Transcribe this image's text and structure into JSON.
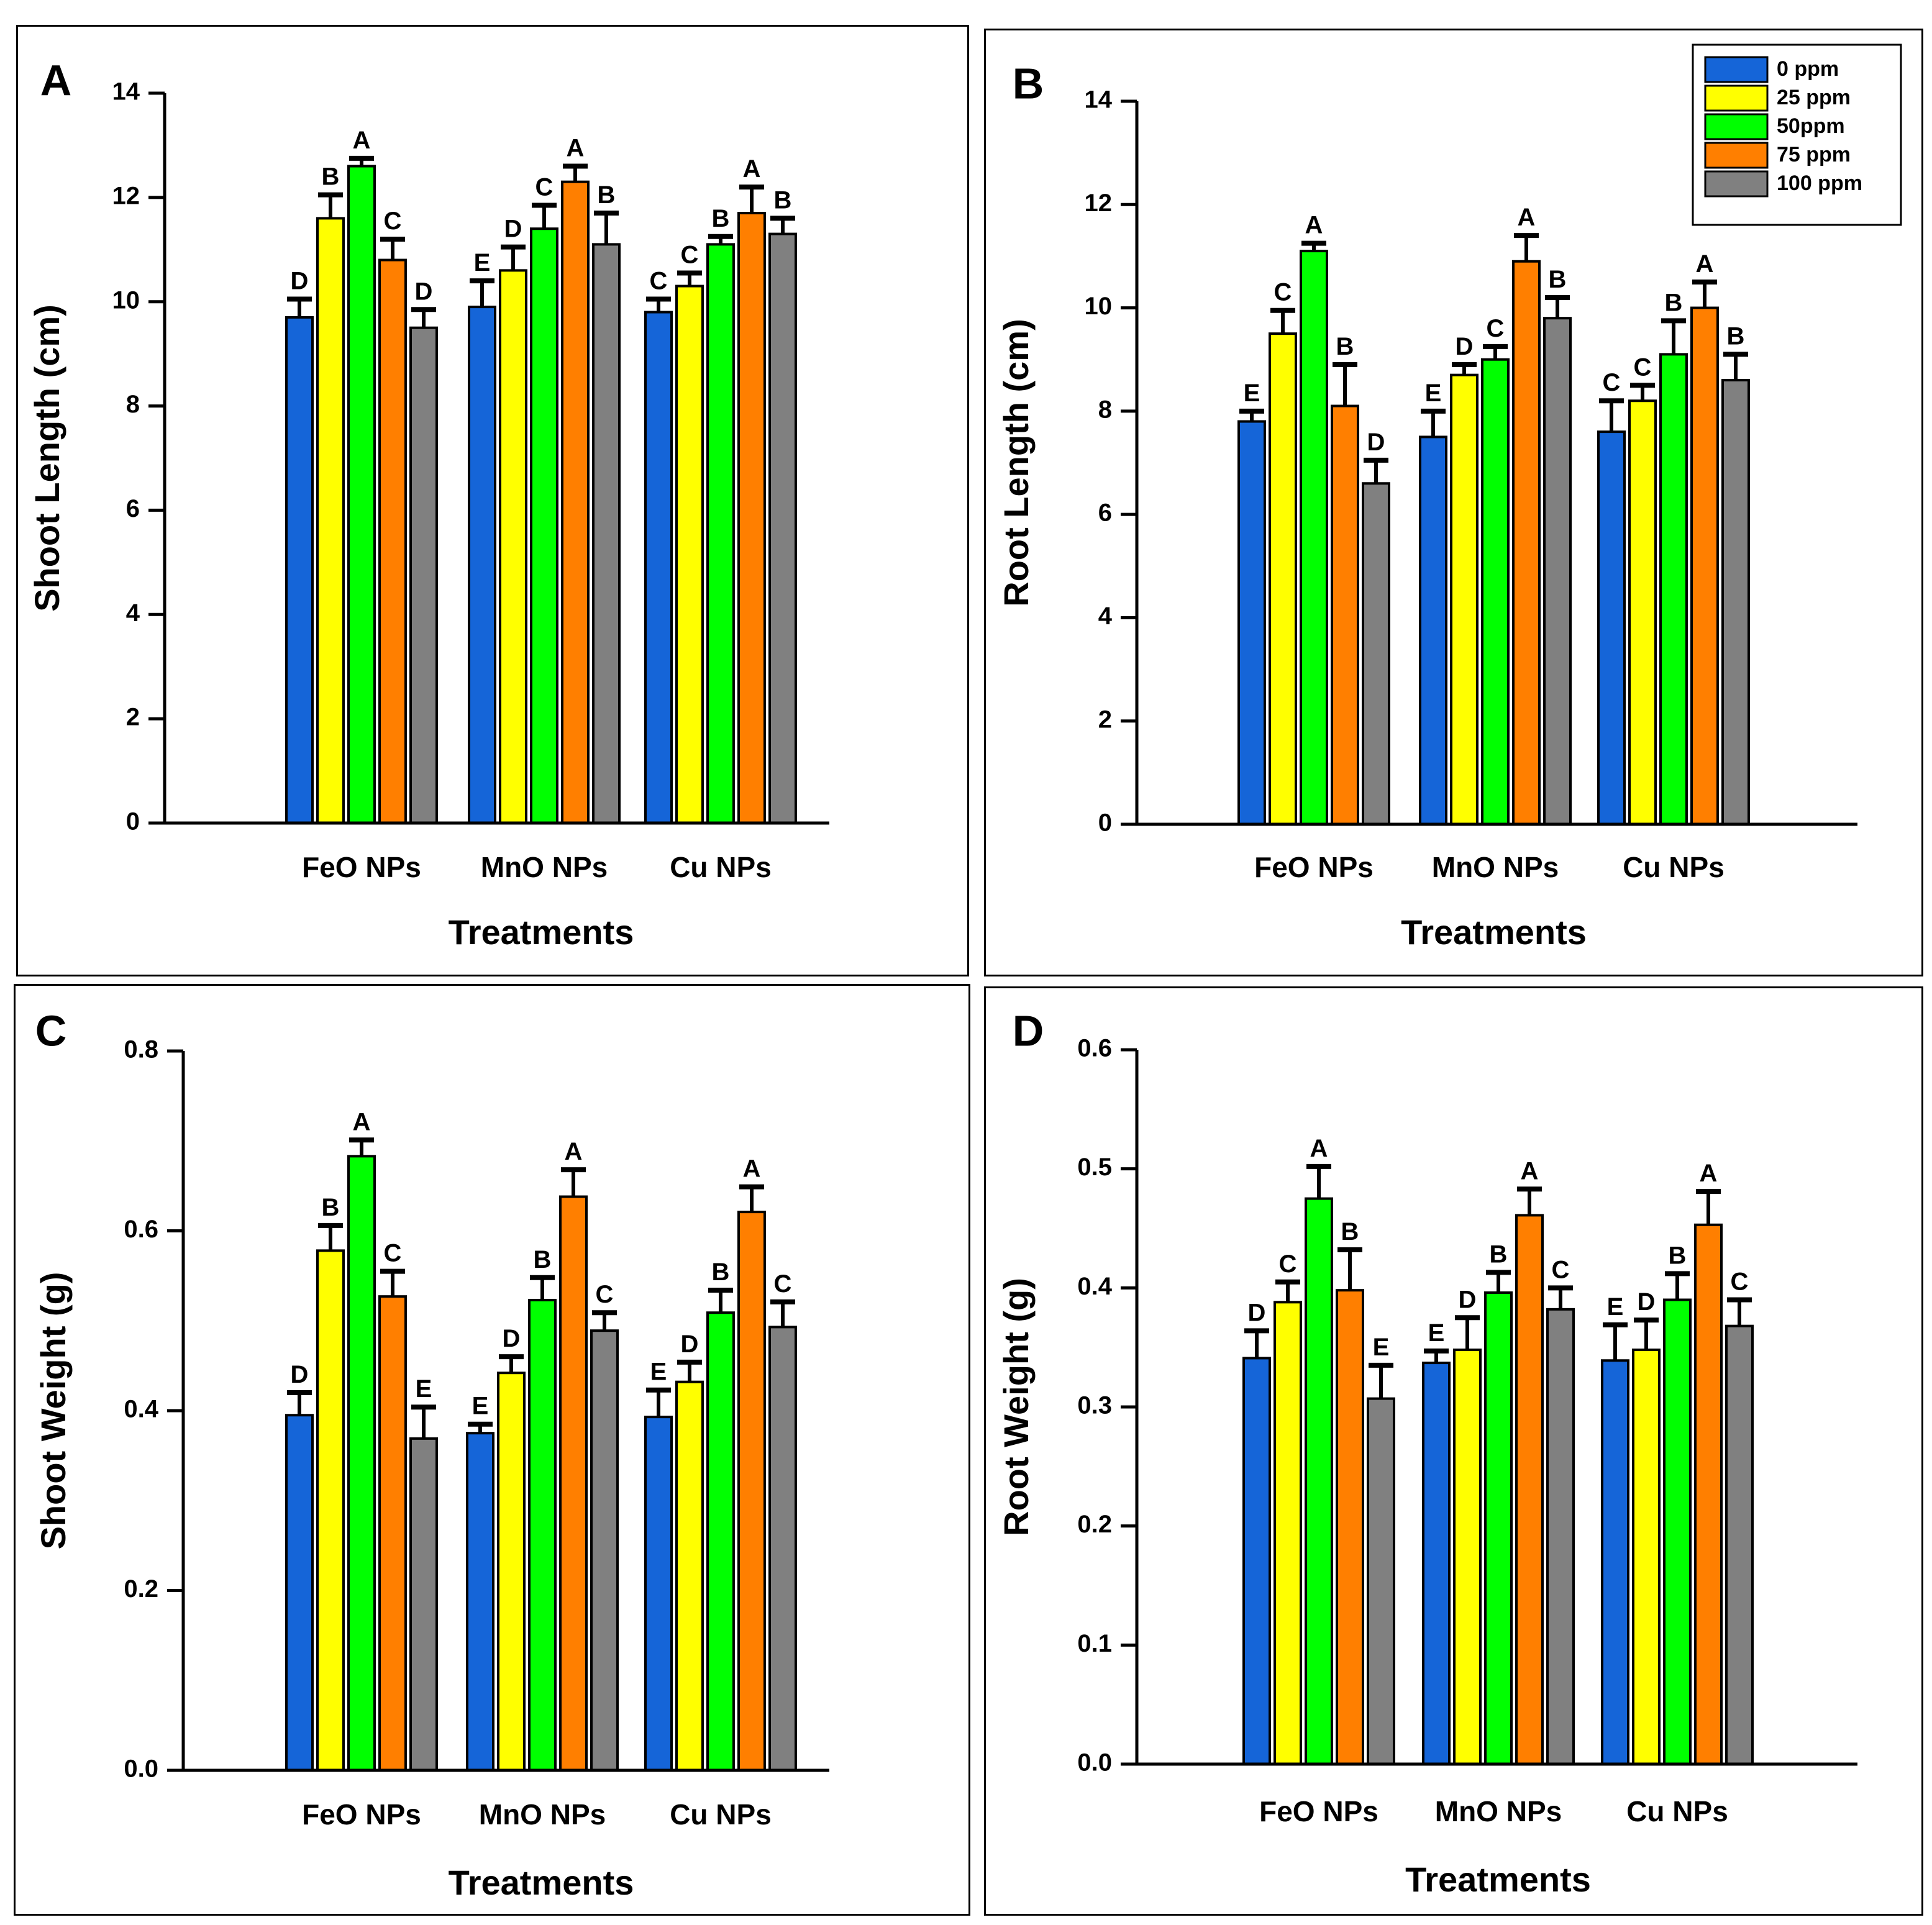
{
  "legend": {
    "entries": [
      {
        "label": "0 ppm",
        "color": "#1565d8"
      },
      {
        "label": "25 ppm",
        "color": "#ffff00"
      },
      {
        "label": "50ppm",
        "color": "#00ff00"
      },
      {
        "label": "75 ppm",
        "color": "#ff7f00"
      },
      {
        "label": "100 ppm",
        "color": "#808080"
      }
    ]
  },
  "chart_data": [
    {
      "panel": "A",
      "type": "bar",
      "title": "",
      "xlabel": "Treatments",
      "ylabel": "Shoot Length (cm)",
      "ylim": [
        0,
        14
      ],
      "yticks": [
        "0",
        "2",
        "4",
        "6",
        "8",
        "10",
        "12",
        "14"
      ],
      "categories": [
        "FeO NPs",
        "MnO NPs",
        "Cu NPs"
      ],
      "series": [
        {
          "name": "0 ppm",
          "values": [
            9.7,
            9.9,
            9.8
          ],
          "errors": [
            0.35,
            0.5,
            0.25
          ],
          "letters": [
            "D",
            "E",
            "C"
          ]
        },
        {
          "name": "25 ppm",
          "values": [
            11.6,
            10.6,
            10.3
          ],
          "errors": [
            0.45,
            0.45,
            0.25
          ],
          "letters": [
            "B",
            "D",
            "C"
          ]
        },
        {
          "name": "50ppm",
          "values": [
            12.6,
            11.4,
            11.1
          ],
          "errors": [
            0.15,
            0.45,
            0.15
          ],
          "letters": [
            "A",
            "C",
            "B"
          ]
        },
        {
          "name": "75 ppm",
          "values": [
            10.8,
            12.3,
            11.7
          ],
          "errors": [
            0.4,
            0.3,
            0.5
          ],
          "letters": [
            "C",
            "A",
            "A"
          ]
        },
        {
          "name": "100 ppm",
          "values": [
            9.5,
            11.1,
            11.3
          ],
          "errors": [
            0.35,
            0.6,
            0.3
          ],
          "letters": [
            "D",
            "B",
            "B"
          ]
        }
      ]
    },
    {
      "panel": "B",
      "type": "bar",
      "title": "",
      "xlabel": "Treatments",
      "ylabel": "Root Length (cm)",
      "ylim": [
        0,
        14
      ],
      "yticks": [
        "0",
        "2",
        "4",
        "6",
        "8",
        "10",
        "12",
        "14"
      ],
      "categories": [
        "FeO NPs",
        "MnO NPs",
        "Cu NPs"
      ],
      "series": [
        {
          "name": "0 ppm",
          "values": [
            7.8,
            7.5,
            7.6
          ],
          "errors": [
            0.2,
            0.5,
            0.6
          ],
          "letters": [
            "E",
            "E",
            "C"
          ]
        },
        {
          "name": "25 ppm",
          "values": [
            9.5,
            8.7,
            8.2
          ],
          "errors": [
            0.45,
            0.2,
            0.3
          ],
          "letters": [
            "C",
            "D",
            "C"
          ]
        },
        {
          "name": "50ppm",
          "values": [
            11.1,
            9.0,
            9.1
          ],
          "errors": [
            0.15,
            0.25,
            0.65
          ],
          "letters": [
            "A",
            "C",
            "B"
          ]
        },
        {
          "name": "75 ppm",
          "values": [
            8.1,
            10.9,
            10.0
          ],
          "errors": [
            0.8,
            0.5,
            0.5
          ],
          "letters": [
            "B",
            "A",
            "A"
          ]
        },
        {
          "name": "100 ppm",
          "values": [
            6.6,
            9.8,
            8.6
          ],
          "errors": [
            0.45,
            0.4,
            0.5
          ],
          "letters": [
            "D",
            "B",
            "B"
          ]
        }
      ]
    },
    {
      "panel": "C",
      "type": "bar",
      "title": "",
      "xlabel": "Treatments",
      "ylabel": "Shoot Weight (g)",
      "ylim": [
        0,
        0.8
      ],
      "yticks": [
        "0.0",
        "0.2",
        "0.4",
        "0.6",
        "0.8"
      ],
      "categories": [
        "FeO NPs",
        "MnO NPs",
        "Cu NPs"
      ],
      "series": [
        {
          "name": "0 ppm",
          "values": [
            0.395,
            0.375,
            0.393
          ],
          "errors": [
            0.025,
            0.01,
            0.03
          ],
          "letters": [
            "D",
            "E",
            "E"
          ]
        },
        {
          "name": "25 ppm",
          "values": [
            0.578,
            0.442,
            0.432
          ],
          "errors": [
            0.028,
            0.018,
            0.022
          ],
          "letters": [
            "B",
            "D",
            "D"
          ]
        },
        {
          "name": "50ppm",
          "values": [
            0.683,
            0.523,
            0.509
          ],
          "errors": [
            0.018,
            0.025,
            0.025
          ],
          "letters": [
            "A",
            "B",
            "B"
          ]
        },
        {
          "name": "75 ppm",
          "values": [
            0.527,
            0.638,
            0.621
          ],
          "errors": [
            0.028,
            0.03,
            0.028
          ],
          "letters": [
            "C",
            "A",
            "A"
          ]
        },
        {
          "name": "100 ppm",
          "values": [
            0.369,
            0.489,
            0.493
          ],
          "errors": [
            0.035,
            0.02,
            0.028
          ],
          "letters": [
            "E",
            "C",
            "C"
          ]
        }
      ]
    },
    {
      "panel": "D",
      "type": "bar",
      "title": "",
      "xlabel": "Treatments",
      "ylabel": "Root Weight (g)",
      "ylim": [
        0,
        0.6
      ],
      "yticks": [
        "0.0",
        "0.1",
        "0.2",
        "0.3",
        "0.4",
        "0.5",
        "0.6"
      ],
      "categories": [
        "FeO NPs",
        "MnO NPs",
        "Cu NPs"
      ],
      "series": [
        {
          "name": "0 ppm",
          "values": [
            0.341,
            0.337,
            0.339
          ],
          "errors": [
            0.023,
            0.01,
            0.03
          ],
          "letters": [
            "D",
            "E",
            "E"
          ]
        },
        {
          "name": "25 ppm",
          "values": [
            0.388,
            0.348,
            0.348
          ],
          "errors": [
            0.017,
            0.027,
            0.025
          ],
          "letters": [
            "C",
            "D",
            "D"
          ]
        },
        {
          "name": "50ppm",
          "values": [
            0.475,
            0.396,
            0.39
          ],
          "errors": [
            0.027,
            0.017,
            0.022
          ],
          "letters": [
            "A",
            "B",
            "B"
          ]
        },
        {
          "name": "75 ppm",
          "values": [
            0.398,
            0.461,
            0.453
          ],
          "errors": [
            0.034,
            0.022,
            0.028
          ],
          "letters": [
            "B",
            "A",
            "A"
          ]
        },
        {
          "name": "100 ppm",
          "values": [
            0.307,
            0.382,
            0.368
          ],
          "errors": [
            0.028,
            0.018,
            0.022
          ],
          "letters": [
            "E",
            "C",
            "C"
          ]
        }
      ]
    }
  ]
}
